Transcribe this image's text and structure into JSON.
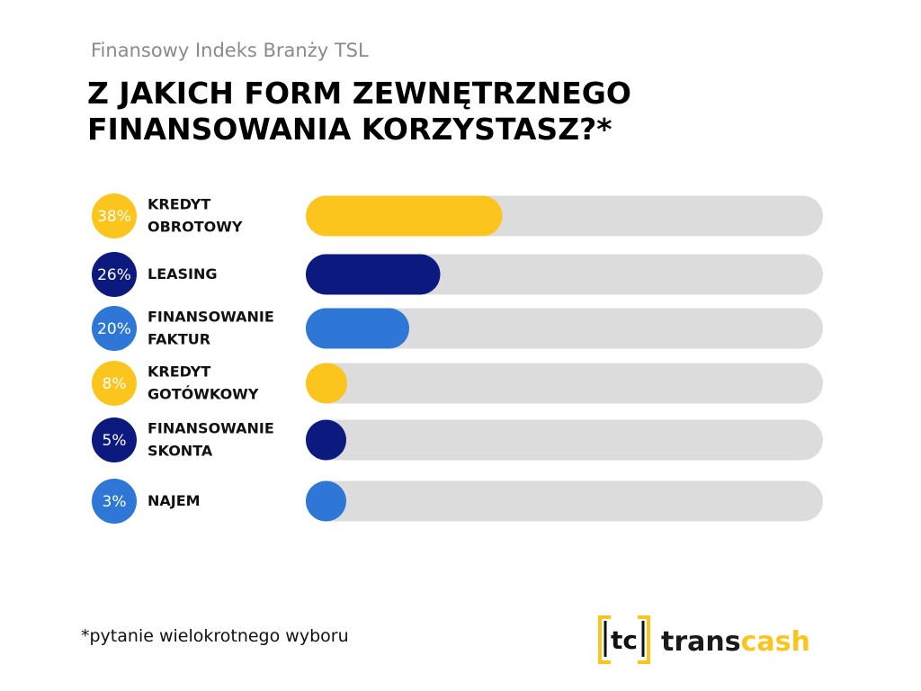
{
  "chart_data": {
    "type": "bar",
    "subtitle": "Finansowy Indeks Branży TSL",
    "title": "Z JAKICH FORM ZEWNĘTRZNEGO\nFINANSOWANIA KORZYSTASZ?*",
    "categories": [
      "KREDYT\nOBROTOWY",
      "LEASING",
      "FINANSOWANIE\nFAKTUR",
      "KREDYT\nGOTÓWKOWY",
      "FINANSOWANIE\nSKONTA",
      "NAJEM"
    ],
    "values": [
      38,
      26,
      20,
      8,
      5,
      3
    ],
    "value_labels": [
      "38%",
      "26%",
      "20%",
      "8%",
      "5%",
      "3%"
    ],
    "colors": [
      "#fcc51d",
      "#0c1a80",
      "#2e77d6",
      "#fcc51d",
      "#0c1a80",
      "#2e77d6"
    ],
    "track_color": "#dcdcdc",
    "xlim": [
      0,
      100
    ]
  },
  "footnote": "*pytanie wielokrotnego wyboru",
  "logo": {
    "mark": "tc",
    "text_1": "trans",
    "text_2": "cash"
  }
}
